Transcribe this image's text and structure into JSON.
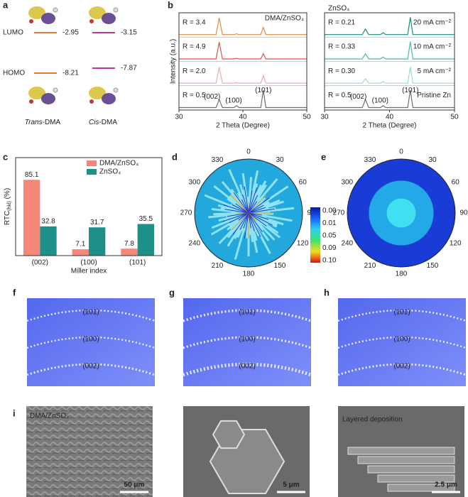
{
  "panel_labels": [
    "a",
    "b",
    "c",
    "d",
    "e",
    "f",
    "g",
    "h",
    "i"
  ],
  "orbitals": {
    "levels": [
      {
        "name": "LUMO",
        "values": [
          -2.95,
          -3.15
        ]
      },
      {
        "name": "HOMO",
        "values": [
          -8.21,
          -7.87
        ]
      }
    ],
    "molecules": [
      [
        "Trans",
        "-DMA"
      ],
      [
        "Cis",
        "-DMA"
      ]
    ],
    "colors": [
      "#e07b39",
      "#c2379b"
    ]
  },
  "chart_data": [
    {
      "type": "xrd",
      "title": "DMA/ZnSO₄",
      "xlabel": "2 Theta (Degree)",
      "ylabel": "Intensity (a.u.)",
      "xlim": [
        30,
        50
      ],
      "xticks": [
        30,
        40,
        50
      ],
      "ylim": [
        0,
        100
      ],
      "x": [
        30,
        35.8,
        36.3,
        36.8,
        38.6,
        39.0,
        39.4,
        42.8,
        43.2,
        43.6,
        50
      ],
      "annotations": [
        "(002)",
        "(100)",
        "(101)"
      ],
      "series": [
        {
          "name": "R = 3.4",
          "color": "#e8883f",
          "values": [
            2,
            2,
            92,
            2,
            2,
            6,
            2,
            2,
            40,
            2,
            2
          ]
        },
        {
          "name": "R = 4.9",
          "color": "#d9534f",
          "values": [
            2,
            2,
            92,
            2,
            2,
            5,
            2,
            2,
            30,
            2,
            2
          ]
        },
        {
          "name": "R = 2.0",
          "color": "#f0a8a8",
          "values": [
            2,
            2,
            88,
            2,
            2,
            5,
            2,
            2,
            42,
            2,
            2
          ]
        },
        {
          "name": "R = 0.5",
          "color": "#707070",
          "values": [
            2,
            2,
            45,
            2,
            2,
            12,
            2,
            2,
            95,
            2,
            2
          ]
        }
      ]
    },
    {
      "type": "xrd",
      "title": "ZnSO₄",
      "xlabel": "2 Theta (Degree)",
      "xlim": [
        30,
        50
      ],
      "xticks": [
        30,
        40,
        50
      ],
      "ylim": [
        0,
        100
      ],
      "x": [
        30,
        35.8,
        36.3,
        36.8,
        38.6,
        39.0,
        39.4,
        42.8,
        43.2,
        43.6,
        50
      ],
      "annotations": [
        "(002)",
        "(100)",
        "(101)"
      ],
      "series": [
        {
          "name": "R = 0.21",
          "label": "20 mA cm⁻²",
          "color": "#1a8a7a",
          "values": [
            2,
            2,
            32,
            2,
            2,
            12,
            2,
            2,
            95,
            2,
            2
          ]
        },
        {
          "name": "R = 0.33",
          "label": "10 mA cm⁻²",
          "color": "#4fb8a8",
          "values": [
            2,
            2,
            30,
            2,
            2,
            12,
            2,
            2,
            95,
            2,
            2
          ]
        },
        {
          "name": "R = 0.30",
          "label": "5 mA cm⁻²",
          "color": "#9fd8cc",
          "values": [
            2,
            2,
            26,
            2,
            2,
            10,
            2,
            2,
            90,
            2,
            2
          ]
        },
        {
          "name": "R = 0.5",
          "label": "Pristine Zn",
          "color": "#707070",
          "values": [
            2,
            2,
            45,
            2,
            2,
            12,
            2,
            2,
            95,
            2,
            2
          ]
        }
      ]
    },
    {
      "type": "bar",
      "xlabel": "Miller index",
      "ylabel": "RTC",
      "ylabel_sub": "(hkl)",
      "ylabel_unit": " (%)",
      "categories": [
        "(002)",
        "(100)",
        "(101)"
      ],
      "ylim": [
        0,
        110
      ],
      "series": [
        {
          "name": "DMA/ZnSO₄",
          "color": "#f4877a",
          "values": [
            85.1,
            7.1,
            7.8
          ]
        },
        {
          "name": "ZnSO₄",
          "color": "#1f8f8a",
          "values": [
            32.8,
            31.7,
            35.5
          ]
        }
      ]
    }
  ],
  "pole_figures": {
    "angles": [
      0,
      30,
      60,
      90,
      120,
      150,
      180,
      210,
      240,
      270,
      300,
      330
    ],
    "colorbar_labels": [
      "0.00",
      "0.01",
      "0.05",
      "0.09",
      "0.10"
    ]
  },
  "diffraction": {
    "labels": [
      "(101)",
      "(100)",
      "(002)"
    ]
  },
  "sem": {
    "captions": [
      "DMA/ZnSO₄",
      "Layered deposition"
    ],
    "scale_bars": [
      "50 μm",
      "5 μm",
      "2.5 μm"
    ]
  }
}
